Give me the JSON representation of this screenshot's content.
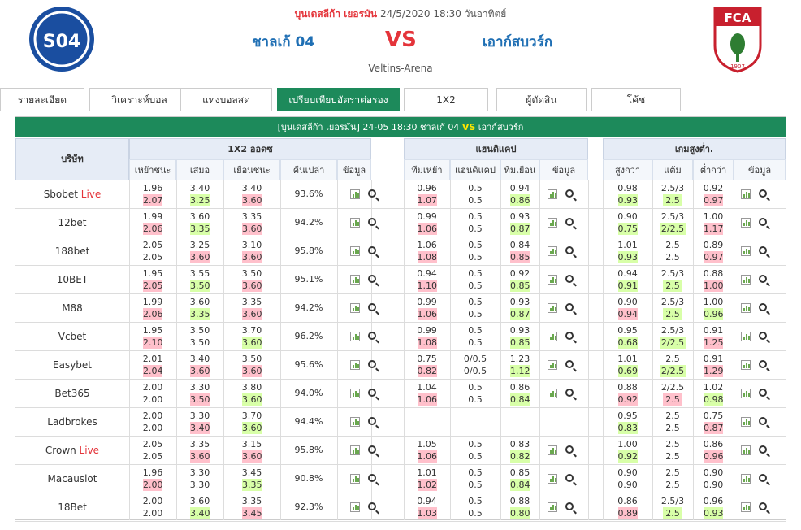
{
  "header": {
    "league": "บุนเดสลีก้า เยอรมัน",
    "datetime": "24/5/2020 18:30 วันอาทิตย์",
    "home": "ชาลเก้ 04",
    "vs": "VS",
    "away": "เอาก์สบวร์ก",
    "venue": "Veltins-Arena",
    "home_logo_text": "S04",
    "away_logo_text": "FCA",
    "away_logo_year": "1907"
  },
  "tabs": [
    {
      "label": "รายละเอียด"
    },
    {
      "label": "วิเคราะห์บอล"
    },
    {
      "label": "แทงบอลสด"
    },
    {
      "label": "เปรียบเทียบอัตราต่อรอง"
    },
    {
      "label": "1X2"
    },
    {
      "label": "ผู้ตัดสิน"
    },
    {
      "label": "โค้ช"
    }
  ],
  "active_tab": "เปรียบเทียบอัตราต่อรอง",
  "match_bar": {
    "pre": "[บุนเดสลีก้า เยอรมัน]  24-05 18:30  ชาลเก้ 04 ",
    "vs": "VS",
    "post": " เอาก์สบวร์ก"
  },
  "columns": {
    "company": "บริษัท",
    "x12_title": "1X2 ออดซ",
    "x12": [
      "เหย้าชนะ",
      "เสมอ",
      "เยือนชนะ",
      "คืนเปล่า",
      "ข้อมูล"
    ],
    "hcap_title": "แฮนดิแคป",
    "hcap": [
      "ทีมเหย้า",
      "แฮนดิแคป",
      "ทีมเยือน",
      "ข้อมูล"
    ],
    "ou_title": "เกมสูงต่ำ.",
    "ou": [
      "สูงกว่า",
      "แต้ม",
      "ต่ำกว่า",
      "ข้อมูล"
    ]
  },
  "live_label": "Live",
  "rows": [
    {
      "name": "Sbobet",
      "live": true,
      "x12": [
        [
          "1.96",
          "2.07",
          "p"
        ],
        [
          "3.40",
          "3.25",
          "g"
        ],
        [
          "3.40",
          "3.60",
          "p"
        ]
      ],
      "ret": "93.6%",
      "hcap": [
        [
          "0.96",
          "1.07",
          "p"
        ],
        [
          "0.5",
          "0.5",
          ""
        ],
        [
          "0.94",
          "0.86",
          "g"
        ]
      ],
      "ou": [
        [
          "0.98",
          "0.93",
          "g"
        ],
        [
          "2.5/3",
          "2.5",
          "g"
        ],
        [
          "0.92",
          "0.97",
          "p"
        ]
      ]
    },
    {
      "name": "12bet",
      "live": false,
      "x12": [
        [
          "1.99",
          "2.06",
          "p"
        ],
        [
          "3.60",
          "3.35",
          "g"
        ],
        [
          "3.35",
          "3.60",
          "p"
        ]
      ],
      "ret": "94.2%",
      "hcap": [
        [
          "0.99",
          "1.06",
          "p"
        ],
        [
          "0.5",
          "0.5",
          ""
        ],
        [
          "0.93",
          "0.87",
          "g"
        ]
      ],
      "ou": [
        [
          "0.90",
          "0.75",
          "g"
        ],
        [
          "2.5/3",
          "2/2.5",
          "g"
        ],
        [
          "1.00",
          "1.17",
          "p"
        ]
      ]
    },
    {
      "name": "188bet",
      "live": false,
      "x12": [
        [
          "2.05",
          "2.05",
          ""
        ],
        [
          "3.25",
          "3.60",
          "p"
        ],
        [
          "3.10",
          "3.60",
          "p"
        ]
      ],
      "ret": "95.8%",
      "hcap": [
        [
          "1.06",
          "1.08",
          "p"
        ],
        [
          "0.5",
          "0.5",
          ""
        ],
        [
          "0.84",
          "0.85",
          "p"
        ]
      ],
      "ou": [
        [
          "1.01",
          "0.93",
          "g"
        ],
        [
          "2.5",
          "2.5",
          ""
        ],
        [
          "0.89",
          "0.97",
          "p"
        ]
      ]
    },
    {
      "name": "10BET",
      "live": false,
      "x12": [
        [
          "1.95",
          "2.05",
          "p"
        ],
        [
          "3.55",
          "3.50",
          "g"
        ],
        [
          "3.50",
          "3.60",
          "p"
        ]
      ],
      "ret": "95.1%",
      "hcap": [
        [
          "0.94",
          "1.10",
          "p"
        ],
        [
          "0.5",
          "0.5",
          ""
        ],
        [
          "0.92",
          "0.85",
          "g"
        ]
      ],
      "ou": [
        [
          "0.94",
          "0.91",
          "g"
        ],
        [
          "2.5/3",
          "2.5",
          "g"
        ],
        [
          "0.88",
          "1.00",
          "p"
        ]
      ]
    },
    {
      "name": "M88",
      "live": false,
      "x12": [
        [
          "1.99",
          "2.06",
          "p"
        ],
        [
          "3.60",
          "3.35",
          "g"
        ],
        [
          "3.35",
          "3.60",
          "p"
        ]
      ],
      "ret": "94.2%",
      "hcap": [
        [
          "0.99",
          "1.06",
          "p"
        ],
        [
          "0.5",
          "0.5",
          ""
        ],
        [
          "0.93",
          "0.87",
          "g"
        ]
      ],
      "ou": [
        [
          "0.90",
          "0.94",
          "p"
        ],
        [
          "2.5/3",
          "2.5",
          "g"
        ],
        [
          "1.00",
          "0.96",
          "g"
        ]
      ]
    },
    {
      "name": "Vcbet",
      "live": false,
      "x12": [
        [
          "1.95",
          "2.10",
          "p"
        ],
        [
          "3.50",
          "3.50",
          ""
        ],
        [
          "3.70",
          "3.60",
          "g"
        ]
      ],
      "ret": "96.2%",
      "hcap": [
        [
          "0.99",
          "1.08",
          "p"
        ],
        [
          "0.5",
          "0.5",
          ""
        ],
        [
          "0.93",
          "0.85",
          "g"
        ]
      ],
      "ou": [
        [
          "0.95",
          "0.68",
          "g"
        ],
        [
          "2.5/3",
          "2/2.5",
          "g"
        ],
        [
          "0.91",
          "1.25",
          "p"
        ]
      ]
    },
    {
      "name": "Easybet",
      "live": false,
      "x12": [
        [
          "2.01",
          "2.04",
          "p"
        ],
        [
          "3.40",
          "3.60",
          "p"
        ],
        [
          "3.50",
          "3.60",
          "p"
        ]
      ],
      "ret": "95.6%",
      "hcap": [
        [
          "0.75",
          "0.82",
          "p"
        ],
        [
          "0/0.5",
          "0/0.5",
          ""
        ],
        [
          "1.23",
          "1.12",
          "g"
        ]
      ],
      "ou": [
        [
          "1.01",
          "0.69",
          "g"
        ],
        [
          "2.5",
          "2/2.5",
          "g"
        ],
        [
          "0.91",
          "1.29",
          "p"
        ]
      ]
    },
    {
      "name": "Bet365",
      "live": false,
      "x12": [
        [
          "2.00",
          "2.00",
          ""
        ],
        [
          "3.30",
          "3.50",
          "p"
        ],
        [
          "3.80",
          "3.60",
          "g"
        ]
      ],
      "ret": "94.0%",
      "hcap": [
        [
          "1.04",
          "1.06",
          "p"
        ],
        [
          "0.5",
          "0.5",
          ""
        ],
        [
          "0.86",
          "0.84",
          "g"
        ]
      ],
      "ou": [
        [
          "0.88",
          "0.92",
          "p"
        ],
        [
          "2/2.5",
          "2.5",
          "p"
        ],
        [
          "1.02",
          "0.98",
          "g"
        ]
      ]
    },
    {
      "name": "Ladbrokes",
      "live": false,
      "x12": [
        [
          "2.00",
          "2.00",
          ""
        ],
        [
          "3.30",
          "3.40",
          "p"
        ],
        [
          "3.70",
          "3.60",
          "g"
        ]
      ],
      "ret": "94.4%",
      "hcap": null,
      "ou": [
        [
          "0.95",
          "0.83",
          "g"
        ],
        [
          "2.5",
          "2.5",
          ""
        ],
        [
          "0.75",
          "0.87",
          "p"
        ]
      ]
    },
    {
      "name": "Crown",
      "live": true,
      "x12": [
        [
          "2.05",
          "2.05",
          ""
        ],
        [
          "3.35",
          "3.60",
          "p"
        ],
        [
          "3.15",
          "3.60",
          "p"
        ]
      ],
      "ret": "95.8%",
      "hcap": [
        [
          "1.05",
          "1.06",
          "p"
        ],
        [
          "0.5",
          "0.5",
          ""
        ],
        [
          "0.83",
          "0.82",
          "g"
        ]
      ],
      "ou": [
        [
          "1.00",
          "0.92",
          "g"
        ],
        [
          "2.5",
          "2.5",
          ""
        ],
        [
          "0.86",
          "0.96",
          "p"
        ]
      ]
    },
    {
      "name": "Macauslot",
      "live": false,
      "x12": [
        [
          "1.96",
          "2.00",
          "p"
        ],
        [
          "3.30",
          "3.30",
          ""
        ],
        [
          "3.45",
          "3.35",
          "g"
        ]
      ],
      "ret": "90.8%",
      "hcap": [
        [
          "1.01",
          "1.02",
          "p"
        ],
        [
          "0.5",
          "0.5",
          ""
        ],
        [
          "0.85",
          "0.84",
          "g"
        ]
      ],
      "ou": [
        [
          "0.90",
          "0.90",
          ""
        ],
        [
          "2.5",
          "2.5",
          ""
        ],
        [
          "0.90",
          "0.90",
          ""
        ]
      ]
    },
    {
      "name": "18Bet",
      "live": false,
      "x12": [
        [
          "2.00",
          "2.00",
          ""
        ],
        [
          "3.60",
          "3.40",
          "g"
        ],
        [
          "3.35",
          "3.45",
          "p"
        ]
      ],
      "ret": "92.3%",
      "hcap": [
        [
          "0.94",
          "1.03",
          "p"
        ],
        [
          "0.5",
          "0.5",
          ""
        ],
        [
          "0.88",
          "0.80",
          "g"
        ]
      ],
      "ou": [
        [
          "0.86",
          "0.89",
          "p"
        ],
        [
          "2.5/3",
          "2.5",
          "g"
        ],
        [
          "0.96",
          "0.93",
          "g"
        ]
      ]
    }
  ],
  "colors": {
    "green_bar": "#1d8a5b",
    "blue_team": "#1f6fb4",
    "red": "#e4343a",
    "pink": "#ffc0cb",
    "lightgreen": "#d8ffa8"
  }
}
